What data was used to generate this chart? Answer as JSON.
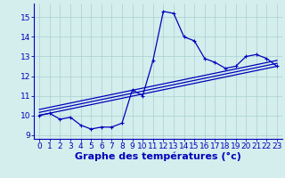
{
  "xlabel": "Graphe des températures (°c)",
  "background_color": "#d4eeed",
  "grid_color": "#aacfcf",
  "line_color": "#0000bb",
  "hours": [
    0,
    1,
    2,
    3,
    4,
    5,
    6,
    7,
    8,
    9,
    10,
    11,
    12,
    13,
    14,
    15,
    16,
    17,
    18,
    19,
    20,
    21,
    22,
    23
  ],
  "temps": [
    10.0,
    10.1,
    9.8,
    9.9,
    9.5,
    9.3,
    9.4,
    9.4,
    9.6,
    11.3,
    11.0,
    12.8,
    15.3,
    15.2,
    14.0,
    13.8,
    12.9,
    12.7,
    12.4,
    12.5,
    13.0,
    13.1,
    12.9,
    12.5
  ],
  "ylim": [
    8.8,
    15.7
  ],
  "xlim": [
    -0.5,
    23.5
  ],
  "yticks": [
    9,
    10,
    11,
    12,
    13,
    14,
    15
  ],
  "xticks": [
    0,
    1,
    2,
    3,
    4,
    5,
    6,
    7,
    8,
    9,
    10,
    11,
    12,
    13,
    14,
    15,
    16,
    17,
    18,
    19,
    20,
    21,
    22,
    23
  ],
  "reg_lines": [
    {
      "x0": 0,
      "y0": 10.0,
      "x1": 23,
      "y1": 12.5
    },
    {
      "x0": 0,
      "y0": 10.15,
      "x1": 23,
      "y1": 12.65
    },
    {
      "x0": 0,
      "y0": 10.3,
      "x1": 23,
      "y1": 12.8
    }
  ],
  "xlabel_fontsize": 8,
  "tick_fontsize": 6.5
}
